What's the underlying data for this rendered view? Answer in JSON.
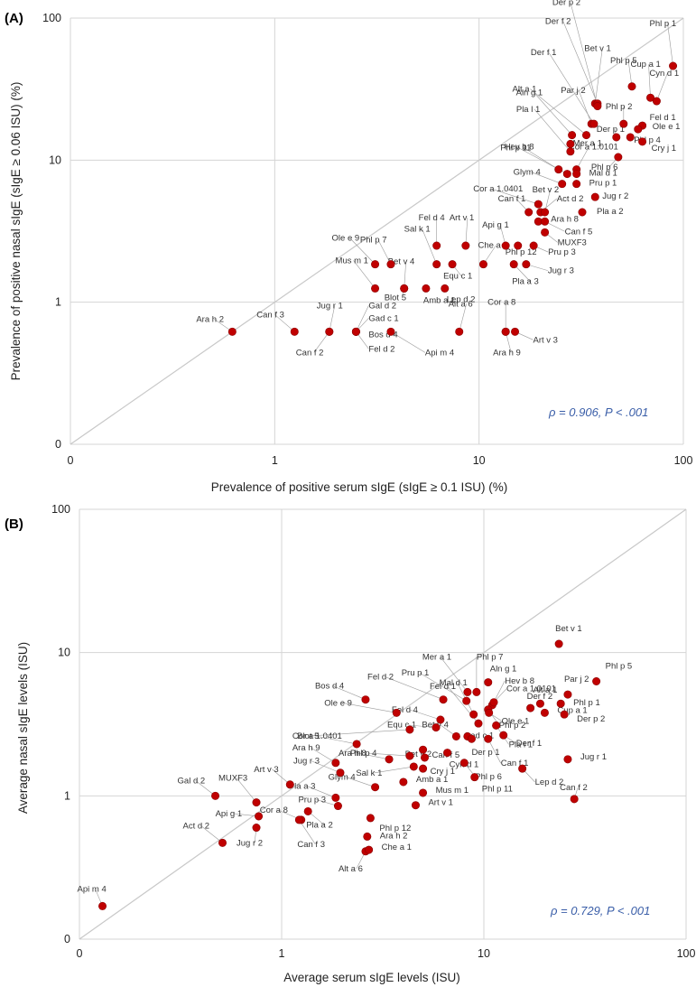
{
  "chart_data": [
    {
      "panel": "(A)",
      "type": "scatter",
      "xlabel": "Prevalence of positive serum sIgE (sIgE ≥ 0.1 ISU) (%)",
      "ylabel": "Prevalence of positive nasal sIgE (sIgE ≥ 0.06 ISU) (%)",
      "x_ticks": [
        "0",
        "1",
        "10",
        "100"
      ],
      "y_ticks": [
        "0",
        "1",
        "10",
        "100"
      ],
      "scale": "log",
      "grid": true,
      "identity_line": true,
      "stat_text": "ρ = 0.906, P < .001",
      "marker_color": "#c00000",
      "points": [
        {
          "label": "Ara h 2",
          "x": 0.62,
          "y": 0.62
        },
        {
          "label": "Can f 3",
          "x": 1.25,
          "y": 0.62
        },
        {
          "label": "Jug r 1",
          "x": 1.85,
          "y": 0.62
        },
        {
          "label": "Can f 2",
          "x": 1.85,
          "y": 0.62
        },
        {
          "label": "Gal d 2",
          "x": 2.5,
          "y": 0.62
        },
        {
          "label": "Gad c 1",
          "x": 2.5,
          "y": 0.62
        },
        {
          "label": "Bos d 4",
          "x": 2.5,
          "y": 0.62
        },
        {
          "label": "Fel d 2",
          "x": 2.5,
          "y": 0.62
        },
        {
          "label": "Api m 4",
          "x": 3.7,
          "y": 0.62
        },
        {
          "label": "Alt a 6",
          "x": 8.0,
          "y": 0.62
        },
        {
          "label": "Cor a 8",
          "x": 13.5,
          "y": 0.62
        },
        {
          "label": "Ara h 9",
          "x": 13.5,
          "y": 0.62
        },
        {
          "label": "Art v 3",
          "x": 15.0,
          "y": 0.62
        },
        {
          "label": "Mus m 1",
          "x": 3.1,
          "y": 1.25
        },
        {
          "label": "Bet v 4",
          "x": 4.3,
          "y": 1.25
        },
        {
          "label": "Blot 5",
          "x": 4.3,
          "y": 1.25
        },
        {
          "label": "Amb a 1",
          "x": 5.5,
          "y": 1.25
        },
        {
          "label": "Lep d 2",
          "x": 6.8,
          "y": 1.25
        },
        {
          "label": "Ole e 9",
          "x": 3.1,
          "y": 1.85
        },
        {
          "label": "Phl p 7",
          "x": 3.7,
          "y": 1.85
        },
        {
          "label": "Sal k 1",
          "x": 6.2,
          "y": 1.85
        },
        {
          "label": "Equ c 1",
          "x": 7.4,
          "y": 1.85
        },
        {
          "label": "Fel d 4",
          "x": 6.2,
          "y": 2.5
        },
        {
          "label": "Art v 1",
          "x": 8.6,
          "y": 2.5
        },
        {
          "label": "Che a 1",
          "x": 10.5,
          "y": 1.85
        },
        {
          "label": "Pla a 3",
          "x": 14.8,
          "y": 1.85
        },
        {
          "label": "Jug r 3",
          "x": 17.0,
          "y": 1.85
        },
        {
          "label": "Api g 1",
          "x": 13.5,
          "y": 2.5
        },
        {
          "label": "Phl p 12",
          "x": 15.5,
          "y": 2.5
        },
        {
          "label": "Pru p 3",
          "x": 18.5,
          "y": 2.5
        },
        {
          "label": "Can f 1",
          "x": 17.5,
          "y": 4.3
        },
        {
          "label": "Ara h 8",
          "x": 19.5,
          "y": 3.7
        },
        {
          "label": "Can f 5",
          "x": 21.0,
          "y": 3.7
        },
        {
          "label": "MUXF3",
          "x": 21.0,
          "y": 3.1
        },
        {
          "label": "Act d 2",
          "x": 20.0,
          "y": 4.3
        },
        {
          "label": "Cor a 1.0401",
          "x": 19.5,
          "y": 4.9
        },
        {
          "label": "Bet v 2",
          "x": 21.0,
          "y": 4.3
        },
        {
          "label": "Pla a 2",
          "x": 32.0,
          "y": 4.3
        },
        {
          "label": "Jug r 2",
          "x": 37.0,
          "y": 5.5
        },
        {
          "label": "Glym 4",
          "x": 25.5,
          "y": 6.8
        },
        {
          "label": "Pru p 1",
          "x": 30.0,
          "y": 6.8
        },
        {
          "label": "Phl p 11",
          "x": 27.0,
          "y": 8.0
        },
        {
          "label": "Mer a 1",
          "x": 30.0,
          "y": 8.6
        },
        {
          "label": "Mal d 1",
          "x": 30.0,
          "y": 8.0
        },
        {
          "label": "Hev b 8",
          "x": 24.5,
          "y": 8.6
        },
        {
          "label": "Pla l 1",
          "x": 28.0,
          "y": 11.5
        },
        {
          "label": "Cor a 1.0101",
          "x": 28.0,
          "y": 13.0
        },
        {
          "label": "Aln g 1",
          "x": 28.5,
          "y": 15.0
        },
        {
          "label": "Alt a 1",
          "x": 33.5,
          "y": 15.0
        },
        {
          "label": "Par j 2",
          "x": 35.5,
          "y": 18.0
        },
        {
          "label": "Bet v 1",
          "x": 37.0,
          "y": 25.0
        },
        {
          "label": "Der f 1",
          "x": 36.5,
          "y": 18.0
        },
        {
          "label": "Der f 2",
          "x": 38.0,
          "y": 25.0
        },
        {
          "label": "Der p 2",
          "x": 38.0,
          "y": 24.0
        },
        {
          "label": "Phl p 5",
          "x": 56.0,
          "y": 33.0
        },
        {
          "label": "Phl p 1",
          "x": 89.0,
          "y": 46.0
        },
        {
          "label": "Cup a 1",
          "x": 69.0,
          "y": 27.5
        },
        {
          "label": "Cyn d 1",
          "x": 74.0,
          "y": 26.0
        },
        {
          "label": "Phl p 2",
          "x": 51.0,
          "y": 18.0
        },
        {
          "label": "Der p 1",
          "x": 47.0,
          "y": 14.5
        },
        {
          "label": "Fel d 1",
          "x": 63.0,
          "y": 17.5
        },
        {
          "label": "Ole e 1",
          "x": 60.0,
          "y": 16.5
        },
        {
          "label": "Phl p 4",
          "x": 55.0,
          "y": 14.5
        },
        {
          "label": "Cry j 1",
          "x": 63.0,
          "y": 13.5
        },
        {
          "label": "Phl p 6",
          "x": 48.0,
          "y": 10.5
        }
      ]
    },
    {
      "panel": "(B)",
      "type": "scatter",
      "xlabel": "Average serum sIgE levels (ISU)",
      "ylabel": "Average nasal sIgE levels (ISU)",
      "x_ticks": [
        "0",
        "1",
        "10",
        "100"
      ],
      "y_ticks": [
        "0",
        "1",
        "10",
        "100"
      ],
      "scale": "log",
      "grid": true,
      "identity_line": true,
      "stat_text": "ρ = 0.729, P < .001",
      "marker_color": "#c00000",
      "points": [
        {
          "label": "Api m 4",
          "x": 0.13,
          "y": 0.17
        },
        {
          "label": "Act d 2",
          "x": 0.51,
          "y": 0.47
        },
        {
          "label": "Gal d 2",
          "x": 0.47,
          "y": 1.0
        },
        {
          "label": "MUXF3",
          "x": 0.75,
          "y": 0.9
        },
        {
          "label": "Api g 1",
          "x": 0.77,
          "y": 0.72
        },
        {
          "label": "Jug r 2",
          "x": 0.75,
          "y": 0.6
        },
        {
          "label": "Art v 3",
          "x": 1.1,
          "y": 1.2
        },
        {
          "label": "Cor a 8",
          "x": 1.25,
          "y": 0.68
        },
        {
          "label": "Pla a 2",
          "x": 1.35,
          "y": 0.78
        },
        {
          "label": "Can f 3",
          "x": 1.22,
          "y": 0.68
        },
        {
          "label": "Jug r 3",
          "x": 1.95,
          "y": 1.45
        },
        {
          "label": "Pla a 3",
          "x": 1.85,
          "y": 0.97
        },
        {
          "label": "Pru p 3",
          "x": 1.9,
          "y": 0.85
        },
        {
          "label": "Alt a 6",
          "x": 2.6,
          "y": 0.41
        },
        {
          "label": "Ara h 9",
          "x": 1.85,
          "y": 1.7
        },
        {
          "label": "Blot 5",
          "x": 2.35,
          "y": 2.3
        },
        {
          "label": "Bos d 4",
          "x": 2.6,
          "y": 4.7
        },
        {
          "label": "Glym 4",
          "x": 2.9,
          "y": 1.15
        },
        {
          "label": "Phl p 12",
          "x": 2.75,
          "y": 0.7
        },
        {
          "label": "Ara h 2",
          "x": 2.65,
          "y": 0.52
        },
        {
          "label": "Che a 1",
          "x": 2.7,
          "y": 0.42
        },
        {
          "label": "Cor a 1.0401",
          "x": 4.3,
          "y": 2.9
        },
        {
          "label": "Ole e 9",
          "x": 3.7,
          "y": 3.8
        },
        {
          "label": "Ara h 8",
          "x": 3.4,
          "y": 1.8
        },
        {
          "label": "Phl p 4",
          "x": 4.3,
          "y": 1.9
        },
        {
          "label": "Sal k 1",
          "x": 4.5,
          "y": 1.6
        },
        {
          "label": "Amb a 1",
          "x": 4.0,
          "y": 1.25
        },
        {
          "label": "Art v 1",
          "x": 4.6,
          "y": 0.86
        },
        {
          "label": "Mus m 1",
          "x": 5.0,
          "y": 1.05
        },
        {
          "label": "Can f 5",
          "x": 5.1,
          "y": 1.85
        },
        {
          "label": "Cry j 1",
          "x": 5.0,
          "y": 1.55
        },
        {
          "label": "Bet v 2",
          "x": 5.0,
          "y": 2.1
        },
        {
          "label": "Equ c 1",
          "x": 5.8,
          "y": 3.0
        },
        {
          "label": "Fel d 4",
          "x": 6.1,
          "y": 3.4
        },
        {
          "label": "Fel d 2",
          "x": 6.3,
          "y": 4.7
        },
        {
          "label": "Cyn d 1",
          "x": 6.6,
          "y": 2.0
        },
        {
          "label": "Bet v 4",
          "x": 7.3,
          "y": 2.6
        },
        {
          "label": "Gad c 1",
          "x": 8.3,
          "y": 2.6
        },
        {
          "label": "Der p 1",
          "x": 8.7,
          "y": 2.5
        },
        {
          "label": "Phl p 6",
          "x": 8.0,
          "y": 1.7
        },
        {
          "label": "Phl p 11",
          "x": 9.0,
          "y": 1.35
        },
        {
          "label": "Pru p 1",
          "x": 8.2,
          "y": 4.6
        },
        {
          "label": "Mer a 1",
          "x": 8.3,
          "y": 5.3
        },
        {
          "label": "Mal d 1",
          "x": 8.9,
          "y": 3.7
        },
        {
          "label": "Phl p 7",
          "x": 9.2,
          "y": 5.3
        },
        {
          "label": "Fel d 1",
          "x": 9.4,
          "y": 3.2
        },
        {
          "label": "Aln g 1",
          "x": 10.5,
          "y": 6.2
        },
        {
          "label": "Hev b 8",
          "x": 11.0,
          "y": 4.3
        },
        {
          "label": "Cor a 1.0101",
          "x": 11.2,
          "y": 4.5
        },
        {
          "label": "Phl p 2",
          "x": 10.5,
          "y": 4.0
        },
        {
          "label": "Ole e 1",
          "x": 10.6,
          "y": 3.8
        },
        {
          "label": "Der f 1",
          "x": 12.5,
          "y": 2.65
        },
        {
          "label": "Pla l 1",
          "x": 11.5,
          "y": 3.1
        },
        {
          "label": "Can f 1",
          "x": 10.5,
          "y": 2.5
        },
        {
          "label": "Der f 2",
          "x": 17.0,
          "y": 4.1
        },
        {
          "label": "Lep d 2",
          "x": 15.5,
          "y": 1.55
        },
        {
          "label": "Bet v 1",
          "x": 23.5,
          "y": 11.5
        },
        {
          "label": "Par j 2",
          "x": 26.0,
          "y": 5.1
        },
        {
          "label": "Alt a 1",
          "x": 19.0,
          "y": 4.4
        },
        {
          "label": "Phl p 1",
          "x": 24.0,
          "y": 4.4
        },
        {
          "label": "Cup a 1",
          "x": 20.0,
          "y": 3.8
        },
        {
          "label": "Der p 2",
          "x": 25.0,
          "y": 3.7
        },
        {
          "label": "Phl p 5",
          "x": 36.0,
          "y": 6.3
        },
        {
          "label": "Jug r 1",
          "x": 26.0,
          "y": 1.8
        },
        {
          "label": "Can f 2",
          "x": 28.0,
          "y": 0.95
        }
      ]
    }
  ]
}
